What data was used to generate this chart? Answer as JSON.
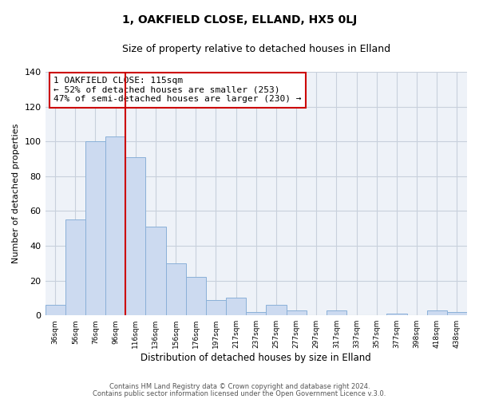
{
  "title": "1, OAKFIELD CLOSE, ELLAND, HX5 0LJ",
  "subtitle": "Size of property relative to detached houses in Elland",
  "xlabel": "Distribution of detached houses by size in Elland",
  "ylabel": "Number of detached properties",
  "bar_labels": [
    "36sqm",
    "56sqm",
    "76sqm",
    "96sqm",
    "116sqm",
    "136sqm",
    "156sqm",
    "176sqm",
    "197sqm",
    "217sqm",
    "237sqm",
    "257sqm",
    "277sqm",
    "297sqm",
    "317sqm",
    "337sqm",
    "357sqm",
    "377sqm",
    "398sqm",
    "418sqm",
    "438sqm"
  ],
  "bar_values": [
    6,
    55,
    100,
    103,
    91,
    51,
    30,
    22,
    9,
    10,
    2,
    6,
    3,
    0,
    3,
    0,
    0,
    1,
    0,
    3,
    2
  ],
  "bar_color": "#ccdaf0",
  "bar_edge_color": "#8ab0d8",
  "vline_index": 4,
  "vline_color": "#cc0000",
  "annotation_lines": [
    "1 OAKFIELD CLOSE: 115sqm",
    "← 52% of detached houses are smaller (253)",
    "47% of semi-detached houses are larger (230) →"
  ],
  "annotation_box_color": "#ffffff",
  "annotation_box_edge": "#cc0000",
  "ylim": [
    0,
    140
  ],
  "yticks": [
    0,
    20,
    40,
    60,
    80,
    100,
    120,
    140
  ],
  "grid_color": "#c8d0dc",
  "footer_lines": [
    "Contains HM Land Registry data © Crown copyright and database right 2024.",
    "Contains public sector information licensed under the Open Government Licence v.3.0."
  ],
  "bg_color": "#ffffff",
  "plot_bg_color": "#eef2f8"
}
